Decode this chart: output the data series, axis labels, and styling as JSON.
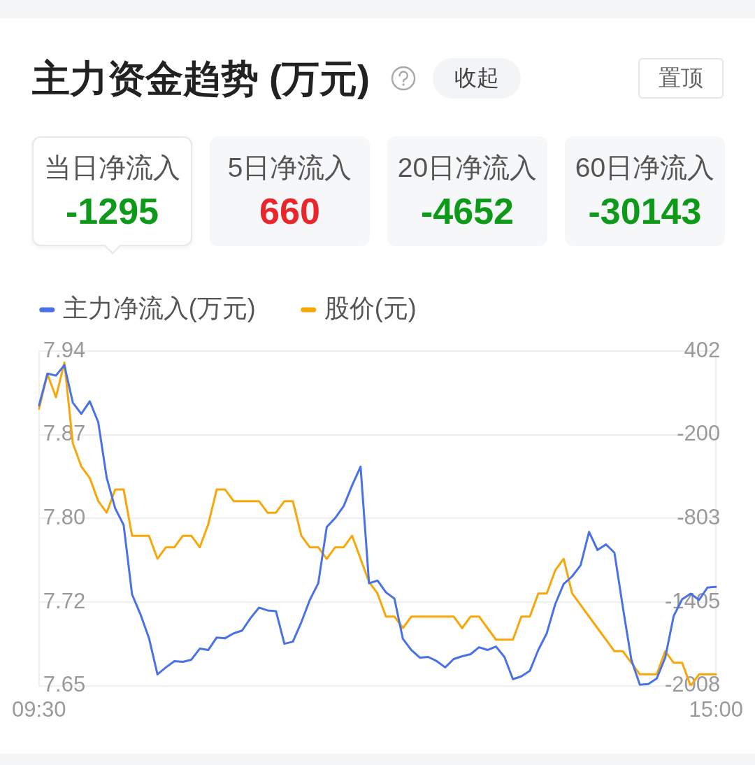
{
  "chart_data": [
    {
      "type": "other",
      "title": "主力资金趋势 (万元)",
      "annotations": [
        "收起",
        "置顶"
      ],
      "categories": [
        "当日净流入",
        "5日净流入",
        "20日净流入",
        "60日净流入"
      ],
      "values": [
        -1295,
        660,
        -4652,
        -30143
      ],
      "data_labels": true
    },
    {
      "type": "line",
      "categories": [
        "09:30",
        null,
        null,
        null,
        null,
        null,
        null,
        null,
        null,
        null,
        null,
        null,
        null,
        null,
        null,
        null,
        null,
        null,
        null,
        null,
        null,
        null,
        null,
        null,
        null,
        null,
        null,
        null,
        null,
        null,
        null,
        null,
        null,
        null,
        null,
        null,
        null,
        null,
        null,
        null,
        null,
        null,
        null,
        null,
        null,
        null,
        null,
        null,
        null,
        null,
        null,
        null,
        null,
        null,
        null,
        null,
        null,
        null,
        null,
        null,
        null,
        null,
        null,
        null,
        null,
        null,
        null,
        null,
        null,
        null,
        null,
        null,
        null,
        null,
        null,
        null,
        null,
        null,
        null,
        null,
        "15:00"
      ],
      "series": [
        {
          "name": "主力净流入(万元)",
          "color": "#4a72e6",
          "axis": "y2",
          "values": [
            10,
            240,
            225,
            300,
            30,
            -50,
            40,
            -110,
            -510,
            -730,
            -850,
            -1350,
            -1495,
            -1665,
            -1925,
            -1875,
            -1830,
            -1835,
            -1820,
            -1740,
            -1750,
            -1660,
            -1665,
            -1630,
            -1610,
            -1520,
            -1445,
            -1465,
            -1470,
            -1705,
            -1690,
            -1550,
            -1390,
            -1270,
            -865,
            -800,
            -715,
            -565,
            -430,
            -1270,
            -1250,
            -1335,
            -1380,
            -1670,
            -1750,
            -1805,
            -1800,
            -1830,
            -1875,
            -1815,
            -1795,
            -1780,
            -1730,
            -1750,
            -1725,
            -1800,
            -1960,
            -1940,
            -1900,
            -1750,
            -1630,
            -1420,
            -1275,
            -1220,
            -1140,
            -900,
            -1030,
            -990,
            -1050,
            -1445,
            -1820,
            -2000,
            -1995,
            -1955,
            -1805,
            -1505,
            -1385,
            -1345,
            -1390,
            -1300,
            -1295
          ]
        },
        {
          "name": "股价(元)",
          "color": "#f7a70a",
          "values": [
            7.89,
            7.92,
            7.9,
            7.93,
            7.86,
            7.84,
            7.83,
            7.81,
            7.8,
            7.82,
            7.82,
            7.78,
            7.78,
            7.78,
            7.76,
            7.77,
            7.77,
            7.78,
            7.78,
            7.77,
            7.79,
            7.82,
            7.82,
            7.81,
            7.81,
            7.81,
            7.81,
            7.8,
            7.8,
            7.81,
            7.81,
            7.78,
            7.77,
            7.77,
            7.76,
            7.77,
            7.77,
            7.78,
            7.76,
            7.74,
            7.73,
            7.71,
            7.71,
            7.7,
            7.71,
            7.71,
            7.71,
            7.71,
            7.71,
            7.71,
            7.7,
            7.71,
            7.71,
            7.7,
            7.69,
            7.69,
            7.69,
            7.71,
            7.71,
            7.73,
            7.73,
            7.75,
            7.76,
            7.73,
            7.72,
            7.71,
            7.7,
            7.69,
            7.68,
            7.68,
            7.67,
            7.66,
            7.66,
            7.66,
            7.68,
            7.67,
            7.67,
            7.65,
            7.66,
            7.66,
            7.66
          ]
        }
      ],
      "ylim": [
        7.65,
        7.94
      ],
      "yticks": [
        7.65,
        {
          "value": 7.7225,
          "label": "7.72"
        },
        {
          "value": 7.795,
          "label": "7.80"
        },
        {
          "value": 7.8675,
          "label": "7.87"
        },
        7.94
      ],
      "y2lim": [
        -2008,
        402
      ],
      "y2ticks": [
        -2008,
        {
          "value": -1405.5,
          "label": "-1405"
        },
        -803,
        {
          "value": -200.5,
          "label": "-200"
        },
        402
      ],
      "grid": "y",
      "legend": "top left",
      "marker": "none"
    }
  ]
}
